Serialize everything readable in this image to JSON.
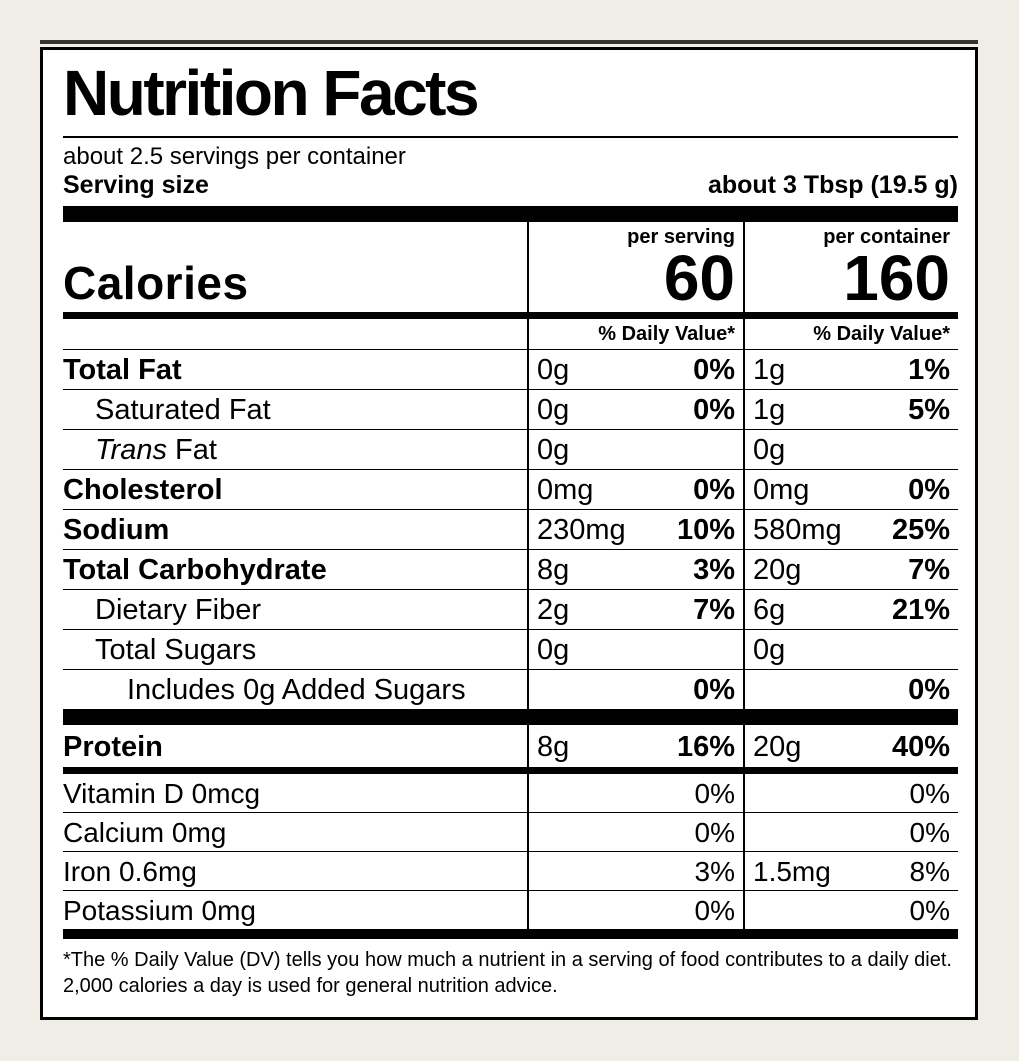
{
  "header": {
    "title": "Nutrition Facts",
    "servings": "about 2.5 servings per container",
    "serving_size_label": "Serving size",
    "serving_size_value": "about 3 Tbsp (19.5 g)"
  },
  "calories": {
    "label": "Calories",
    "columns": [
      {
        "heading": "per serving",
        "value": "60",
        "dv_heading": "% Daily Value*"
      },
      {
        "heading": "per container",
        "value": "160",
        "dv_heading": "% Daily Value*"
      }
    ]
  },
  "nutrients": [
    {
      "label": [
        "Total Fat"
      ],
      "bold": true,
      "indent": 0,
      "serving": [
        "0g",
        "0%"
      ],
      "container": [
        "1g",
        "1%"
      ]
    },
    {
      "label": [
        "Saturated Fat"
      ],
      "bold": false,
      "indent": 1,
      "serving": [
        "0g",
        "0%"
      ],
      "container": [
        "1g",
        "5%"
      ]
    },
    {
      "label": [
        "Trans",
        "Fat"
      ],
      "bold": false,
      "indent": 1,
      "serving": [
        "0g",
        null
      ],
      "container": [
        "0g",
        null
      ]
    },
    {
      "label": [
        "Cholesterol"
      ],
      "bold": true,
      "indent": 0,
      "serving": [
        "0mg",
        "0%"
      ],
      "container": [
        "0mg",
        "0%"
      ]
    },
    {
      "label": [
        "Sodium"
      ],
      "bold": true,
      "indent": 0,
      "serving": [
        "230mg",
        "10%"
      ],
      "container": [
        "580mg",
        "25%"
      ]
    },
    {
      "label": [
        "Total Carbohydrate"
      ],
      "bold": true,
      "indent": 0,
      "serving": [
        "8g",
        "3%"
      ],
      "container": [
        "20g",
        "7%"
      ]
    },
    {
      "label": [
        "Dietary Fiber"
      ],
      "bold": false,
      "indent": 1,
      "serving": [
        "2g",
        "7%"
      ],
      "container": [
        "6g",
        "21%"
      ]
    },
    {
      "label": [
        "Total Sugars"
      ],
      "bold": false,
      "indent": 1,
      "serving": [
        "0g",
        null
      ],
      "container": [
        "0g",
        null
      ]
    },
    {
      "label": [
        "Includes 0g Added Sugars"
      ],
      "bold": false,
      "indent": 2,
      "serving": [
        null,
        "0%"
      ],
      "container": [
        null,
        "0%"
      ]
    }
  ],
  "protein": {
    "label": [
      "Protein"
    ],
    "bold": true,
    "indent": 0,
    "serving": [
      "8g",
      "16%"
    ],
    "container": [
      "20g",
      "40%"
    ]
  },
  "vitamins": [
    {
      "label": [
        "Vitamin D 0mcg"
      ],
      "serving": [
        null,
        "0%"
      ],
      "container": [
        null,
        "0%"
      ]
    },
    {
      "label": [
        "Calcium 0mg"
      ],
      "serving": [
        null,
        "0%"
      ],
      "container": [
        null,
        "0%"
      ]
    },
    {
      "label": [
        "Iron 0.6mg"
      ],
      "serving": [
        null,
        "3%"
      ],
      "container": [
        "1.5mg",
        "8%"
      ]
    },
    {
      "label": [
        "Potassium 0mg"
      ],
      "serving": [
        null,
        "0%"
      ],
      "container": [
        null,
        "0%"
      ]
    }
  ],
  "footnote": "*The % Daily Value (DV) tells you how much a nutrient in a serving of food contributes to a daily diet. 2,000 calories a day is used for general nutrition advice."
}
